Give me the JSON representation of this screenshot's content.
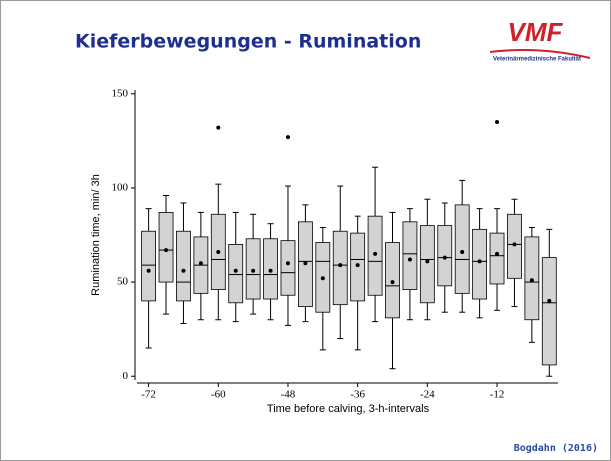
{
  "slide": {
    "title": "Kieferbewegungen - Rumination",
    "logo": "VMF",
    "logo_subtitle": "Veterinärmedizinische Fakultät",
    "footer": "Bogdahn (2016)"
  },
  "chart_data": {
    "type": "box",
    "x_label": "Time before calving, 3-h-intervals",
    "y_label": "Rumination time, min/ 3h",
    "x": [
      -72,
      -69,
      -66,
      -63,
      -60,
      -57,
      -54,
      -51,
      -48,
      -45,
      -42,
      -39,
      -36,
      -33,
      -30,
      -27,
      -24,
      -21,
      -18,
      -15,
      -12,
      -9,
      -6,
      -3
    ],
    "low": [
      15,
      33,
      28,
      30,
      30,
      29,
      33,
      30,
      27,
      29,
      14,
      20,
      14,
      29,
      4,
      30,
      30,
      34,
      34,
      31,
      35,
      37,
      18,
      0
    ],
    "q1": [
      40,
      50,
      40,
      44,
      46,
      39,
      41,
      41,
      43,
      37,
      34,
      38,
      40,
      43,
      31,
      46,
      39,
      48,
      44,
      41,
      49,
      52,
      30,
      6
    ],
    "median": [
      59,
      67,
      50,
      59,
      62,
      54,
      54,
      54,
      55,
      61,
      61,
      59,
      62,
      61,
      48,
      65,
      62,
      63,
      62,
      61,
      64,
      70,
      50,
      39
    ],
    "q3": [
      77,
      87,
      77,
      74,
      86,
      70,
      73,
      73,
      72,
      82,
      71,
      77,
      76,
      85,
      71,
      82,
      80,
      80,
      91,
      78,
      76,
      86,
      74,
      63
    ],
    "high": [
      89,
      96,
      92,
      87,
      102,
      87,
      86,
      81,
      101,
      91,
      79,
      101,
      85,
      111,
      87,
      89,
      94,
      92,
      104,
      89,
      89,
      94,
      79,
      78
    ],
    "mean": [
      56,
      67,
      56,
      60,
      66,
      56,
      56,
      56,
      60,
      60,
      52,
      59,
      59,
      65,
      50,
      62,
      61,
      63,
      66,
      61,
      65,
      70,
      51,
      40
    ],
    "outliers": [
      {
        "x": -60,
        "y": 132
      },
      {
        "x": -48,
        "y": 127
      },
      {
        "x": -12,
        "y": 135
      }
    ],
    "box_color": "#d3d3d3",
    "xlim": [
      -74,
      -1.5
    ],
    "ylim": [
      -2,
      152
    ],
    "xticks": [
      -72,
      -60,
      -48,
      -36,
      -24,
      -12
    ],
    "yticks": [
      0,
      50,
      100,
      150
    ]
  }
}
